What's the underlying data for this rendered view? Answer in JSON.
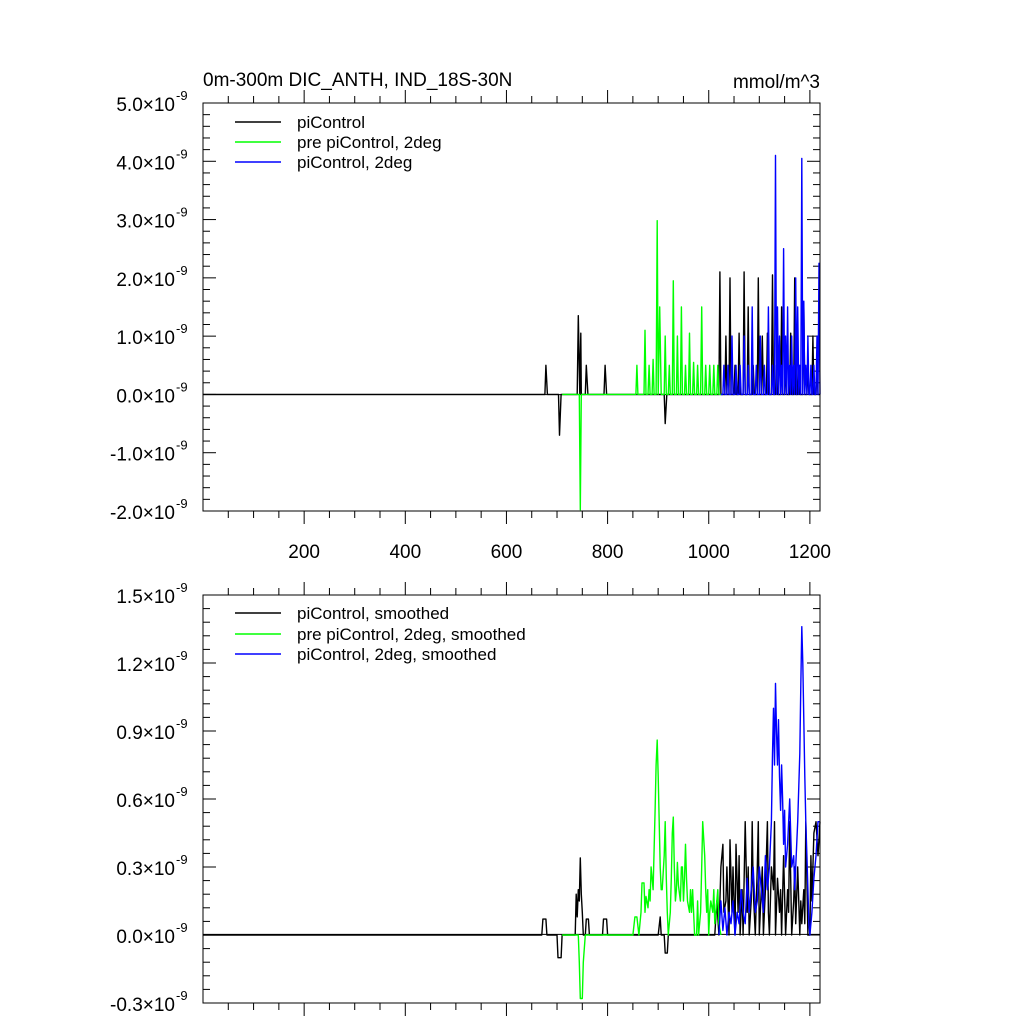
{
  "chart_data": [
    {
      "type": "line",
      "title": "0m-300m DIC_ANTH, IND_18S-30N",
      "units": "mmol/m^3",
      "xlim": [
        0,
        1220
      ],
      "ylim": [
        -2.0,
        5.0
      ],
      "y_exponent": "-9",
      "x_ticks": [
        200,
        400,
        600,
        800,
        1000,
        1200
      ],
      "x_tick_labels": [
        "200",
        "400",
        "600",
        "800",
        "1000",
        "1200"
      ],
      "y_ticks": [
        -2.0,
        -1.0,
        0.0,
        1.0,
        2.0,
        3.0,
        4.0,
        5.0
      ],
      "y_tick_labels": [
        "-2.0×10",
        "-1.0×10",
        "0.0×10",
        "1.0×10",
        "2.0×10",
        "3.0×10",
        "4.0×10",
        "5.0×10"
      ],
      "legend_position": "top-left",
      "series": [
        {
          "name": "piControl",
          "color": "#000000",
          "x": [
            0,
            676,
            678,
            681,
            703,
            705,
            708,
            740,
            742,
            745,
            747,
            748,
            751,
            756,
            758,
            761,
            793,
            795,
            798,
            912,
            914,
            917,
            1020,
            1022,
            1024,
            1026,
            1032,
            1034,
            1036,
            1040,
            1042,
            1044,
            1050,
            1052,
            1054,
            1058,
            1060,
            1062,
            1068,
            1070,
            1072,
            1076,
            1078,
            1080,
            1086,
            1088,
            1090,
            1096,
            1098,
            1100,
            1104,
            1106,
            1108,
            1114,
            1116,
            1118,
            1124,
            1126,
            1128,
            1132,
            1134,
            1136,
            1142,
            1144,
            1146,
            1150,
            1152,
            1154,
            1160,
            1162,
            1164,
            1168,
            1170,
            1172,
            1176,
            1178,
            1180,
            1186,
            1188,
            1190,
            1194,
            1196,
            1198,
            1204,
            1206,
            1208,
            1212,
            1214,
            1216,
            1220
          ],
          "y": [
            0,
            0,
            0.5,
            0,
            0,
            -0.7,
            0,
            0,
            1.35,
            0,
            1.05,
            0,
            0,
            0,
            0.5,
            0,
            0,
            0.5,
            0,
            0,
            -0.5,
            0,
            0,
            2.1,
            0,
            0,
            0,
            1.0,
            0,
            0,
            2.0,
            0,
            0,
            0.5,
            0,
            0,
            1.05,
            0,
            0,
            2.1,
            0,
            0,
            1.5,
            0,
            0,
            0.5,
            0,
            0,
            2.0,
            0,
            0,
            1.0,
            0,
            0,
            1.05,
            0,
            0,
            2.05,
            0,
            0,
            0.5,
            0,
            0,
            1.5,
            0,
            0,
            0.5,
            0,
            0,
            1.05,
            0,
            0,
            2.0,
            0,
            0,
            0.5,
            0,
            0,
            1.5,
            0,
            0,
            0.5,
            0,
            0,
            1.0,
            0,
            0,
            0.5,
            0,
            0
          ]
        },
        {
          "name": "pre piControl, 2deg",
          "color": "#00ff00",
          "x": [
            710,
            744,
            746,
            748,
            856,
            858,
            860,
            872,
            874,
            876,
            880,
            882,
            884,
            888,
            890,
            892,
            896,
            898,
            900,
            903,
            906,
            908,
            912,
            914,
            916,
            920,
            922,
            924,
            928,
            930,
            932,
            936,
            938,
            940,
            944,
            946,
            948,
            952,
            954,
            956,
            960,
            962,
            964,
            968,
            970,
            972,
            976,
            978,
            980,
            984,
            986,
            988,
            992,
            994,
            996,
            1000,
            1002,
            1004,
            1008,
            1010,
            1012,
            1016,
            1018,
            1020,
            1024
          ],
          "y": [
            0,
            0,
            -1.98,
            0,
            0,
            0.5,
            0,
            0,
            1.1,
            0,
            0,
            0.5,
            0,
            0,
            0.6,
            0,
            0,
            2.98,
            0,
            1.5,
            0,
            0,
            0,
            1.0,
            0,
            0,
            0.5,
            0,
            0,
            1.95,
            0,
            0,
            1.0,
            0,
            0,
            1.5,
            0,
            0,
            0.5,
            0,
            0,
            1.05,
            0,
            0,
            0.55,
            0,
            0,
            0.5,
            0,
            0,
            1.5,
            0,
            0,
            0.5,
            0,
            0,
            0.5,
            0,
            0,
            0.5,
            0,
            0,
            0.5,
            0,
            0
          ]
        },
        {
          "name": "piControl, 2deg",
          "color": "#0000ff",
          "x": [
            1024,
            1028,
            1030,
            1032,
            1036,
            1038,
            1040,
            1044,
            1046,
            1048,
            1052,
            1054,
            1056,
            1060,
            1062,
            1064,
            1068,
            1070,
            1072,
            1076,
            1078,
            1080,
            1084,
            1086,
            1088,
            1092,
            1094,
            1096,
            1100,
            1102,
            1104,
            1108,
            1110,
            1112,
            1116,
            1118,
            1120,
            1124,
            1126,
            1128,
            1130,
            1132,
            1134,
            1136,
            1138,
            1140,
            1142,
            1144,
            1146,
            1148,
            1150,
            1152,
            1154,
            1156,
            1158,
            1160,
            1162,
            1164,
            1166,
            1168,
            1170,
            1172,
            1174,
            1176,
            1178,
            1180,
            1182,
            1184,
            1186,
            1188,
            1190,
            1192,
            1194,
            1196,
            1198,
            1200,
            1202,
            1204,
            1206,
            1208,
            1210,
            1212,
            1214,
            1216,
            1218,
            1220
          ],
          "y": [
            0,
            0,
            0.5,
            0,
            0,
            0.5,
            0,
            0,
            1.0,
            0,
            0,
            0.5,
            0,
            0,
            0.5,
            0,
            0,
            1.0,
            0,
            0,
            0.5,
            0,
            0,
            1.5,
            0,
            0,
            0.5,
            0,
            0,
            1.0,
            0,
            0,
            0.5,
            0,
            0,
            1.5,
            0,
            0,
            0.5,
            0,
            0,
            4.1,
            0,
            1.5,
            0,
            1.0,
            0,
            0.5,
            0,
            2.5,
            0,
            1.0,
            0,
            1.5,
            0,
            0.5,
            0,
            1.0,
            0,
            0.5,
            0,
            2.0,
            0,
            1.5,
            0,
            0.5,
            0,
            4.05,
            0,
            1.6,
            0,
            0.5,
            0,
            1.0,
            0,
            0,
            0.5,
            0,
            0,
            0.5,
            0,
            0,
            1.0,
            0,
            2.25,
            0
          ]
        }
      ]
    },
    {
      "type": "line",
      "title": "",
      "xlim": [
        0,
        1220
      ],
      "ylim": [
        -0.3,
        1.5
      ],
      "y_exponent": "-9",
      "x_ticks": [
        200,
        400,
        600,
        800,
        1000,
        1200
      ],
      "y_ticks": [
        -0.3,
        0.0,
        0.3,
        0.6,
        0.9,
        1.2,
        1.5
      ],
      "y_tick_labels": [
        "-0.3×10",
        "0.0×10",
        "0.3×10",
        "0.6×10",
        "0.9×10",
        "1.2×10",
        "1.5×10"
      ],
      "legend_position": "top-left",
      "series": [
        {
          "name": "piControl, smoothed",
          "color": "#000000",
          "x": [
            0,
            670,
            672,
            678,
            680,
            700,
            702,
            708,
            710,
            736,
            738,
            740,
            742,
            744,
            746,
            748,
            750,
            752,
            756,
            758,
            762,
            764,
            790,
            792,
            798,
            800,
            900,
            904,
            906,
            908,
            912,
            914,
            918,
            920,
            1012,
            1016,
            1020,
            1024,
            1028,
            1030,
            1034,
            1036,
            1040,
            1042,
            1046,
            1048,
            1052,
            1054,
            1058,
            1060,
            1062,
            1066,
            1068,
            1072,
            1076,
            1078,
            1080,
            1084,
            1086,
            1088,
            1092,
            1096,
            1098,
            1100,
            1104,
            1106,
            1108,
            1112,
            1116,
            1118,
            1120,
            1124,
            1128,
            1130,
            1132,
            1136,
            1140,
            1142,
            1144,
            1148,
            1152,
            1156,
            1158,
            1160,
            1164,
            1168,
            1170,
            1172,
            1176,
            1180,
            1182,
            1184,
            1188,
            1190,
            1192,
            1196,
            1200,
            1202,
            1204,
            1208,
            1212,
            1216,
            1220
          ],
          "y": [
            0,
            0,
            0.07,
            0.07,
            0,
            0,
            -0.1,
            -0.1,
            0,
            0,
            0.18,
            0.08,
            0.2,
            0.15,
            0.34,
            0.18,
            0.1,
            0,
            0,
            0.07,
            0.07,
            0,
            0,
            0.07,
            0.07,
            0,
            0,
            0.08,
            0.0,
            0,
            0,
            -0.08,
            -0.08,
            0,
            0,
            0.15,
            0.0,
            0.3,
            0.4,
            0.1,
            0.15,
            0.3,
            0.0,
            0.42,
            0.1,
            0.3,
            0.0,
            0.4,
            0.1,
            0.35,
            0.0,
            0.2,
            0.0,
            0.5,
            0.1,
            0.3,
            0.0,
            0.15,
            0.5,
            0.2,
            0.0,
            0.3,
            0.5,
            0.0,
            0.2,
            0.3,
            0.0,
            0.2,
            0.5,
            0.1,
            0.0,
            0.3,
            0.2,
            0.5,
            0.0,
            0.25,
            0.1,
            0.2,
            0.0,
            0.35,
            0.0,
            0.2,
            0.1,
            0.5,
            0.0,
            0.15,
            0.3,
            0.05,
            0.3,
            0.0,
            0.15,
            0.05,
            0.2,
            0.05,
            0.5,
            0.0,
            0.0,
            0.35,
            0.15,
            0.45,
            0.5,
            0.35,
            0.5
          ]
        },
        {
          "name": "pre piControl, 2deg, smoothed",
          "color": "#00ff00",
          "x": [
            710,
            742,
            744,
            746,
            750,
            752,
            756,
            850,
            854,
            858,
            862,
            866,
            868,
            872,
            874,
            876,
            880,
            882,
            884,
            886,
            890,
            894,
            896,
            898,
            900,
            902,
            904,
            906,
            908,
            912,
            914,
            916,
            918,
            920,
            924,
            926,
            928,
            930,
            932,
            934,
            936,
            938,
            940,
            944,
            946,
            948,
            950,
            952,
            954,
            956,
            958,
            962,
            964,
            966,
            968,
            970,
            972,
            976,
            978,
            980,
            984,
            986,
            988,
            992,
            994,
            996,
            998,
            1000,
            1002,
            1004,
            1008,
            1010,
            1012,
            1016,
            1018,
            1020,
            1024
          ],
          "y": [
            0,
            0,
            -0.12,
            -0.28,
            -0.28,
            -0.12,
            0,
            0,
            0.08,
            0.08,
            0,
            0.1,
            0.23,
            0.23,
            0.1,
            0.17,
            0.12,
            0.2,
            0.15,
            0.3,
            0.2,
            0.55,
            0.75,
            0.86,
            0.7,
            0.5,
            0.3,
            0.2,
            0.2,
            0.35,
            0.5,
            0.25,
            0.1,
            0.0,
            0.1,
            0.25,
            0.45,
            0.52,
            0.3,
            0.15,
            0.2,
            0.32,
            0.22,
            0.15,
            0.3,
            0.3,
            0.15,
            0.25,
            0.4,
            0.25,
            0.15,
            0.1,
            0.2,
            0.1,
            0.2,
            0.1,
            0.0,
            0.0,
            0.15,
            0.0,
            0.1,
            0.3,
            0.5,
            0.35,
            0.2,
            0.1,
            0.2,
            0.0,
            0.1,
            0.15,
            0.1,
            0.2,
            0.05,
            0.15,
            0.2,
            0.05,
            0.0
          ]
        },
        {
          "name": "piControl, 2deg, smoothed",
          "color": "#0000ff",
          "x": [
            1020,
            1024,
            1028,
            1032,
            1036,
            1040,
            1044,
            1048,
            1052,
            1056,
            1060,
            1064,
            1068,
            1072,
            1076,
            1080,
            1084,
            1088,
            1092,
            1096,
            1100,
            1104,
            1108,
            1112,
            1116,
            1120,
            1124,
            1126,
            1128,
            1130,
            1132,
            1134,
            1136,
            1138,
            1140,
            1142,
            1144,
            1146,
            1148,
            1150,
            1152,
            1156,
            1160,
            1164,
            1168,
            1170,
            1172,
            1176,
            1180,
            1182,
            1184,
            1186,
            1188,
            1190,
            1192,
            1194,
            1196,
            1198,
            1200,
            1204,
            1208,
            1212,
            1216,
            1220
          ],
          "y": [
            0.0,
            0.15,
            0.02,
            0.12,
            0.0,
            0.1,
            0.05,
            0.15,
            0.0,
            0.1,
            0.05,
            0.2,
            0.1,
            0.05,
            0.25,
            0.1,
            0.2,
            0.3,
            0.1,
            0.15,
            0.3,
            0.2,
            0.1,
            0.35,
            0.2,
            0.3,
            0.5,
            0.8,
            1.0,
            0.75,
            1.11,
            0.9,
            0.75,
            0.95,
            0.7,
            0.55,
            0.75,
            0.6,
            0.4,
            0.55,
            0.3,
            0.4,
            0.6,
            0.3,
            0.35,
            0.2,
            0.3,
            0.5,
            0.8,
            1.1,
            1.36,
            1.2,
            0.95,
            0.7,
            0.5,
            0.35,
            0.2,
            0.05,
            0.0,
            0.1,
            0.25,
            0.35,
            0.5,
            0.5
          ]
        }
      ]
    }
  ]
}
